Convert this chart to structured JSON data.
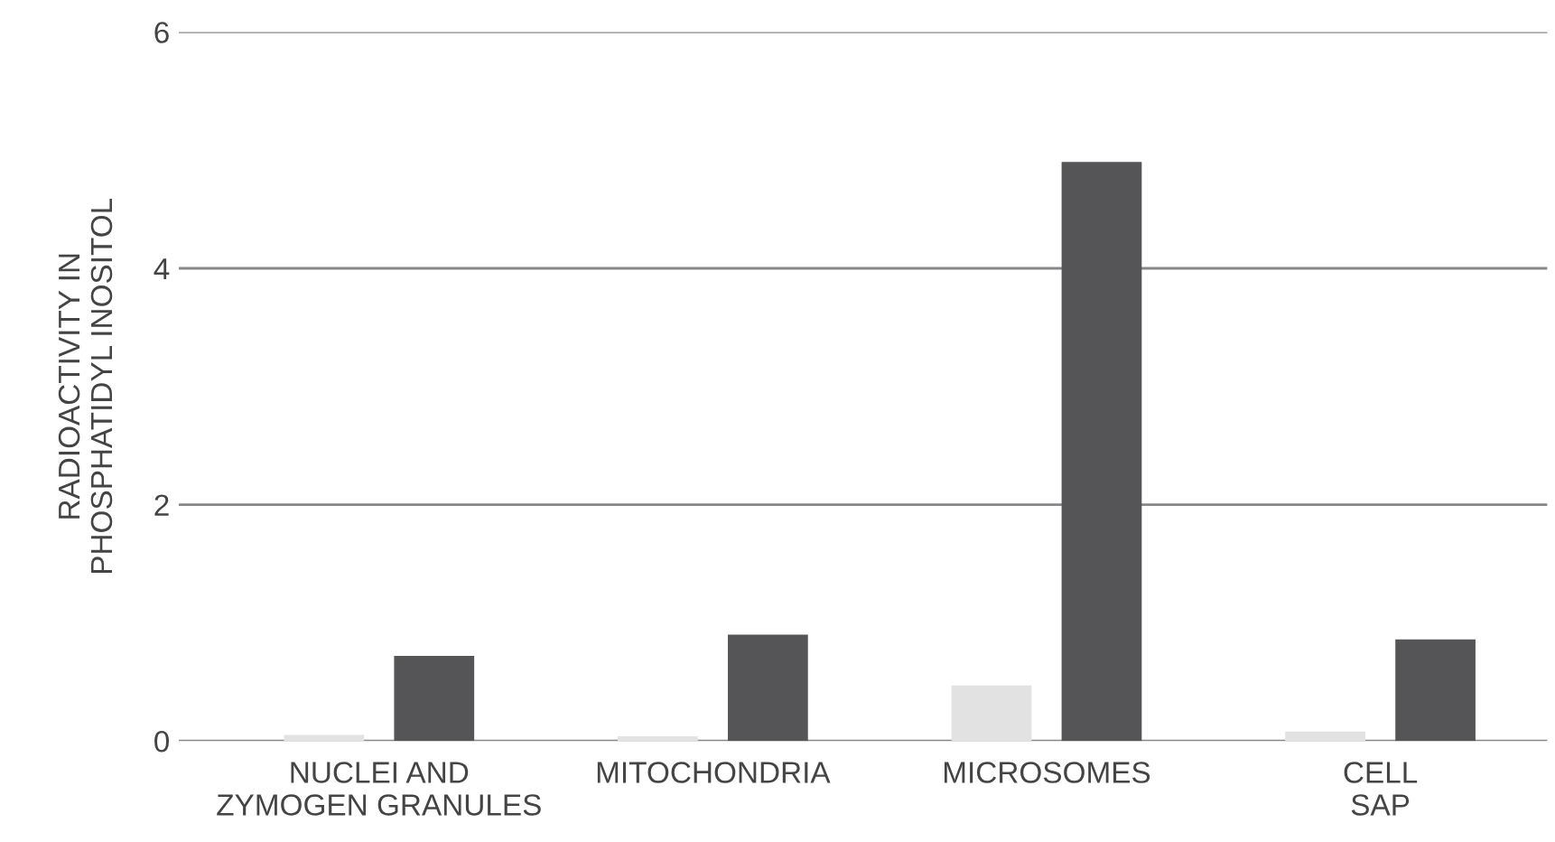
{
  "chart_data": {
    "type": "bar",
    "ylabel": "RADIOACTIVITY IN\nPHOSPHATIDYL INOSITOL",
    "categories": [
      "NUCLEI AND\nZYMOGEN GRANULES",
      "MITOCHONDRIA",
      "MICROSOMES",
      "CELL\nSAP"
    ],
    "series": [
      {
        "color": "#e2e2e2",
        "values": [
          0.05,
          0.04,
          0.47,
          0.08
        ]
      },
      {
        "color": "#555558",
        "values": [
          0.72,
          0.9,
          4.9,
          0.86
        ]
      }
    ],
    "ylim": [
      0,
      6
    ],
    "yticks": [
      0,
      2,
      4,
      6
    ],
    "grid": "y"
  }
}
